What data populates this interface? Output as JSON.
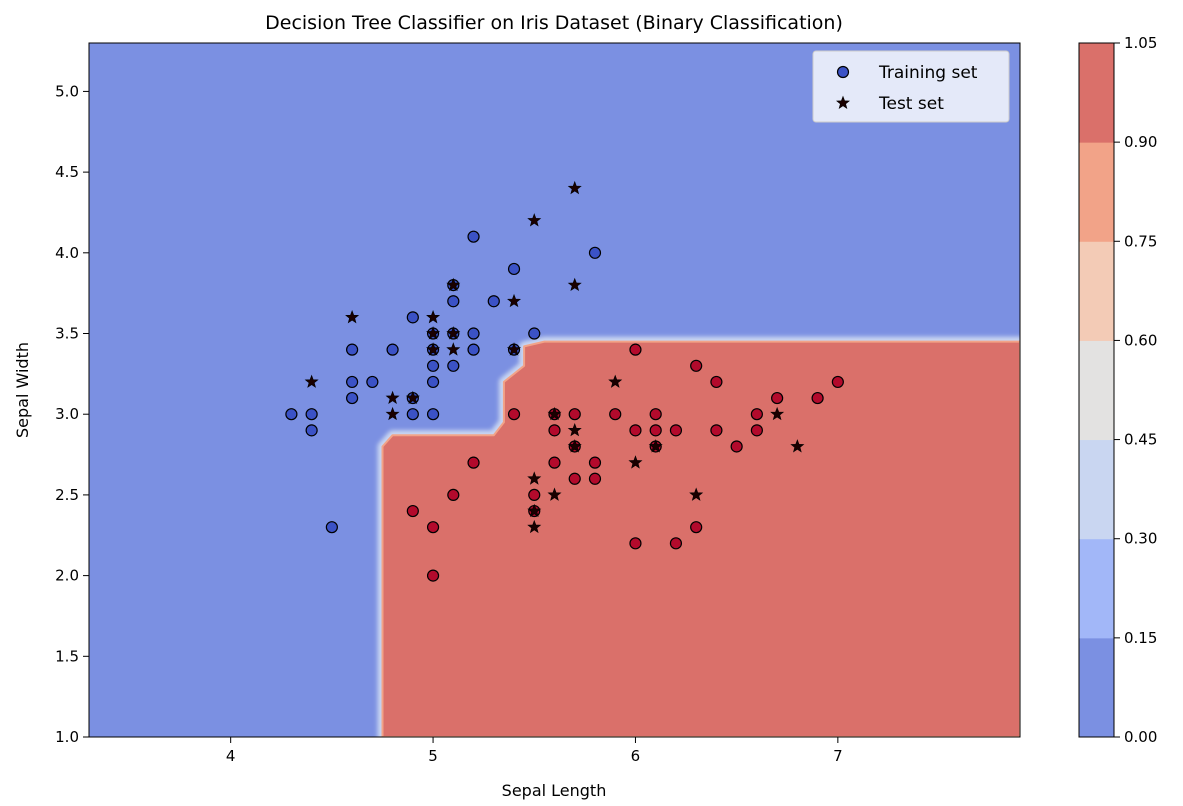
{
  "chart_data": {
    "type": "scatter",
    "title": "Decision Tree Classifier on Iris Dataset (Binary Classification)",
    "xlabel": "Sepal Length",
    "ylabel": "Sepal Width",
    "xlim": [
      3.3,
      7.9
    ],
    "ylim": [
      1.0,
      5.3
    ],
    "xticks": [
      4,
      5,
      6,
      7
    ],
    "yticks": [
      1.0,
      1.5,
      2.0,
      2.5,
      3.0,
      3.5,
      4.0,
      4.5,
      5.0
    ],
    "legend": {
      "placement": "top-right",
      "entries": [
        "Training set",
        "Test set"
      ]
    },
    "decision_region": {
      "class0_color": "#7b90e2",
      "class1_color": "#da706a",
      "class1_boundary": [
        [
          4.75,
          1.0
        ],
        [
          4.75,
          2.8
        ],
        [
          4.8,
          2.87
        ],
        [
          5.3,
          2.87
        ],
        [
          5.35,
          2.95
        ],
        [
          5.35,
          3.2
        ],
        [
          5.45,
          3.3
        ],
        [
          5.45,
          3.42
        ],
        [
          5.55,
          3.45
        ],
        [
          7.9,
          3.45
        ],
        [
          7.9,
          1.0
        ]
      ]
    },
    "colorbar": {
      "ticks": [
        "0.00",
        "0.15",
        "0.30",
        "0.45",
        "0.60",
        "0.75",
        "0.90",
        "1.05"
      ],
      "bands": [
        "#7b90e2",
        "#a2b7f8",
        "#c9d6f1",
        "#e3e2e1",
        "#f3cbb6",
        "#f2a388",
        "#da706a"
      ]
    },
    "series": [
      {
        "name": "Training set",
        "marker": "circle",
        "class0_color": "#3b52c6",
        "class1_color": "#b30a2c",
        "points_class0": [
          [
            4.3,
            3.0
          ],
          [
            4.4,
            3.0
          ],
          [
            4.4,
            2.9
          ],
          [
            4.5,
            2.3
          ],
          [
            4.6,
            3.4
          ],
          [
            4.6,
            3.2
          ],
          [
            4.6,
            3.1
          ],
          [
            4.7,
            3.2
          ],
          [
            4.8,
            3.4
          ],
          [
            4.9,
            3.6
          ],
          [
            4.9,
            3.1
          ],
          [
            4.9,
            3.0
          ],
          [
            5.0,
            3.5
          ],
          [
            5.0,
            3.4
          ],
          [
            5.0,
            3.3
          ],
          [
            5.0,
            3.2
          ],
          [
            5.0,
            3.0
          ],
          [
            5.1,
            3.8
          ],
          [
            5.1,
            3.7
          ],
          [
            5.1,
            3.5
          ],
          [
            5.1,
            3.3
          ],
          [
            5.2,
            4.1
          ],
          [
            5.2,
            3.5
          ],
          [
            5.2,
            3.4
          ],
          [
            5.3,
            3.7
          ],
          [
            5.4,
            3.9
          ],
          [
            5.4,
            3.4
          ],
          [
            5.5,
            3.5
          ],
          [
            5.8,
            4.0
          ]
        ],
        "points_class1": [
          [
            4.9,
            2.4
          ],
          [
            5.0,
            2.3
          ],
          [
            5.0,
            2.0
          ],
          [
            5.1,
            2.5
          ],
          [
            5.2,
            2.7
          ],
          [
            5.4,
            3.0
          ],
          [
            5.5,
            2.5
          ],
          [
            5.5,
            2.4
          ],
          [
            5.6,
            3.0
          ],
          [
            5.6,
            2.9
          ],
          [
            5.6,
            2.7
          ],
          [
            5.7,
            3.0
          ],
          [
            5.7,
            2.8
          ],
          [
            5.7,
            2.6
          ],
          [
            5.8,
            2.7
          ],
          [
            5.8,
            2.6
          ],
          [
            5.9,
            3.0
          ],
          [
            6.0,
            3.4
          ],
          [
            6.0,
            2.9
          ],
          [
            6.0,
            2.2
          ],
          [
            6.1,
            3.0
          ],
          [
            6.1,
            2.9
          ],
          [
            6.1,
            2.8
          ],
          [
            6.2,
            2.9
          ],
          [
            6.2,
            2.2
          ],
          [
            6.3,
            3.3
          ],
          [
            6.3,
            2.3
          ],
          [
            6.4,
            3.2
          ],
          [
            6.4,
            2.9
          ],
          [
            6.5,
            2.8
          ],
          [
            6.6,
            3.0
          ],
          [
            6.6,
            2.9
          ],
          [
            6.7,
            3.1
          ],
          [
            6.9,
            3.1
          ],
          [
            7.0,
            3.2
          ]
        ]
      },
      {
        "name": "Test set",
        "marker": "star",
        "color": "#1a0000",
        "points": [
          [
            4.4,
            3.2
          ],
          [
            4.6,
            3.6
          ],
          [
            4.8,
            3.1
          ],
          [
            4.8,
            3.0
          ],
          [
            4.9,
            3.1
          ],
          [
            5.0,
            3.6
          ],
          [
            5.0,
            3.5
          ],
          [
            5.0,
            3.4
          ],
          [
            5.1,
            3.8
          ],
          [
            5.1,
            3.5
          ],
          [
            5.1,
            3.4
          ],
          [
            5.4,
            3.7
          ],
          [
            5.4,
            3.4
          ],
          [
            5.5,
            4.2
          ],
          [
            5.5,
            2.6
          ],
          [
            5.5,
            2.4
          ],
          [
            5.5,
            2.3
          ],
          [
            5.6,
            3.0
          ],
          [
            5.6,
            2.5
          ],
          [
            5.7,
            4.4
          ],
          [
            5.7,
            3.8
          ],
          [
            5.7,
            2.9
          ],
          [
            5.7,
            2.8
          ],
          [
            5.9,
            3.2
          ],
          [
            6.0,
            2.7
          ],
          [
            6.1,
            2.8
          ],
          [
            6.3,
            2.5
          ],
          [
            6.7,
            3.0
          ],
          [
            6.8,
            2.8
          ]
        ]
      }
    ]
  }
}
